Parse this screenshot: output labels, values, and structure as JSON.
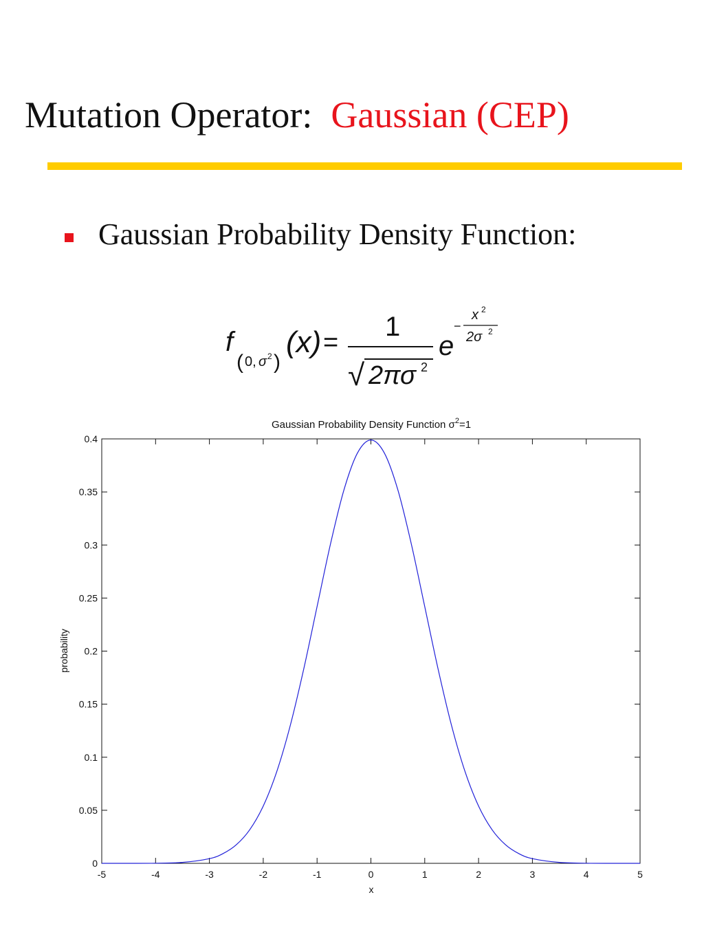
{
  "slide": {
    "title_main": "Mutation Operator:",
    "title_accent": "Gaussian (CEP)",
    "bullet_text": "Gaussian Probability Density Function:",
    "accent_color": "#e8141c",
    "rule_color": "#ffcc00"
  },
  "formula": {
    "func_symbol": "f",
    "sub_open": "(",
    "sub_zero_comma": "0,",
    "sub_sigma": "σ",
    "sub_sigma_exp": "2",
    "sub_close": ")",
    "arg": "(x)",
    "equals": "=",
    "numerator": "1",
    "radical": "√",
    "denominator": "2πσ",
    "denominator_exp": "2",
    "base": "e",
    "exp_minus": "−",
    "exp_num": "x",
    "exp_num_exp": "2",
    "exp_den": "2σ",
    "exp_den_exp": "2"
  },
  "chart_data": {
    "type": "line",
    "title_prefix": "Gaussian Probability Density Function σ",
    "title_superscript": "2",
    "title_suffix": "=1",
    "xlabel": "x",
    "ylabel": "probability",
    "xlim": [
      -5,
      5
    ],
    "ylim": [
      0,
      0.4
    ],
    "x_ticks": [
      -5,
      -4,
      -3,
      -2,
      -1,
      0,
      1,
      2,
      3,
      4,
      5
    ],
    "y_ticks": [
      0,
      0.05,
      0.1,
      0.15,
      0.2,
      0.25,
      0.3,
      0.35,
      0.4
    ],
    "grid": false,
    "line_color": "#2020d8",
    "series": [
      {
        "x": [
          -5,
          -4.5,
          -4,
          -3.5,
          -3,
          -2.75,
          -2.5,
          -2.25,
          -2,
          -1.75,
          -1.5,
          -1.25,
          -1,
          -0.75,
          -0.5,
          -0.25,
          0,
          0.25,
          0.5,
          0.75,
          1,
          1.25,
          1.5,
          1.75,
          2,
          2.25,
          2.5,
          2.75,
          3,
          3.5,
          4,
          4.5,
          5
        ],
        "y": [
          1.5e-06,
          1.6e-05,
          0.000134,
          0.000873,
          0.004432,
          0.009094,
          0.017528,
          0.03174,
          0.053991,
          0.086277,
          0.129518,
          0.182649,
          0.241971,
          0.301137,
          0.352065,
          0.386668,
          0.398942,
          0.386668,
          0.352065,
          0.301137,
          0.241971,
          0.182649,
          0.129518,
          0.086277,
          0.053991,
          0.03174,
          0.017528,
          0.009094,
          0.004432,
          0.000873,
          0.000134,
          1.6e-05,
          1.5e-06
        ]
      }
    ]
  }
}
